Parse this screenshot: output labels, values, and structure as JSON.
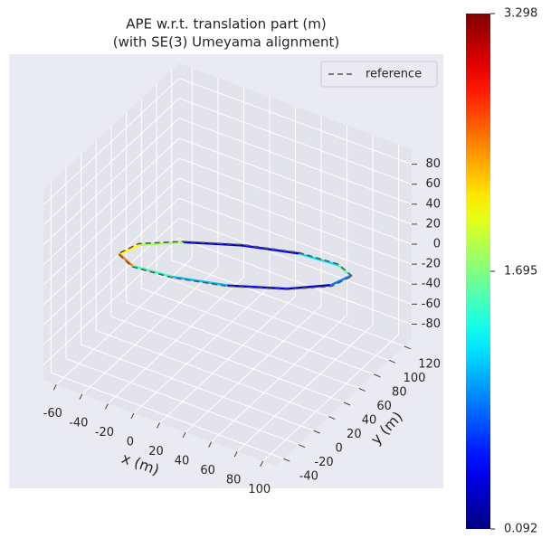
{
  "chart_data": {
    "type": "line3d",
    "title": "APE w.r.t. translation part (m)",
    "subtitle": "(with SE(3) Umeyama alignment)",
    "xlabel": "x (m)",
    "ylabel": "y (m)",
    "xlim": [
      -70,
      110
    ],
    "ylim": [
      -50,
      130
    ],
    "zlim": [
      -95,
      95
    ],
    "xticks": [
      -60,
      -40,
      -20,
      0,
      20,
      40,
      60,
      80,
      100
    ],
    "yticks": [
      -40,
      -20,
      0,
      20,
      40,
      60,
      80,
      100,
      120
    ],
    "zticks": [
      -80,
      -60,
      -40,
      -20,
      0,
      20,
      40,
      60,
      80
    ],
    "grid": true,
    "legend_position": "upper right",
    "trajectory": {
      "x": [
        95,
        80,
        50,
        13,
        -23,
        -46,
        -52,
        -37,
        -7,
        30,
        66,
        89,
        95
      ],
      "y": [
        75,
        83,
        82,
        71,
        54,
        36,
        20,
        12,
        14,
        24,
        41,
        59,
        75
      ],
      "z": [
        0,
        -2,
        -4,
        -6,
        -8,
        -9,
        -10,
        -9,
        -7,
        -5,
        -3,
        -1,
        0
      ],
      "error": [
        1.6,
        1.2,
        0.5,
        0.4,
        1.8,
        2.1,
        2.5,
        1.5,
        1.1,
        0.4,
        0.3,
        0.9,
        1.6
      ]
    },
    "reference": {
      "name": "reference",
      "color": "#555555",
      "x": [
        96,
        80,
        50,
        13,
        -23,
        -47,
        -53,
        -37,
        -7,
        30,
        66,
        90,
        96
      ],
      "y": [
        75,
        84,
        83,
        72,
        55,
        37,
        20,
        11,
        13,
        23,
        40,
        58,
        75
      ],
      "z": [
        0,
        -2,
        -4,
        -6,
        -8,
        -9,
        -10,
        -9,
        -7,
        -5,
        -3,
        -1,
        0
      ]
    },
    "colormap": "jet",
    "clim": [
      0.092,
      3.298
    ],
    "cticks": [
      0.092,
      1.695,
      3.298
    ]
  }
}
